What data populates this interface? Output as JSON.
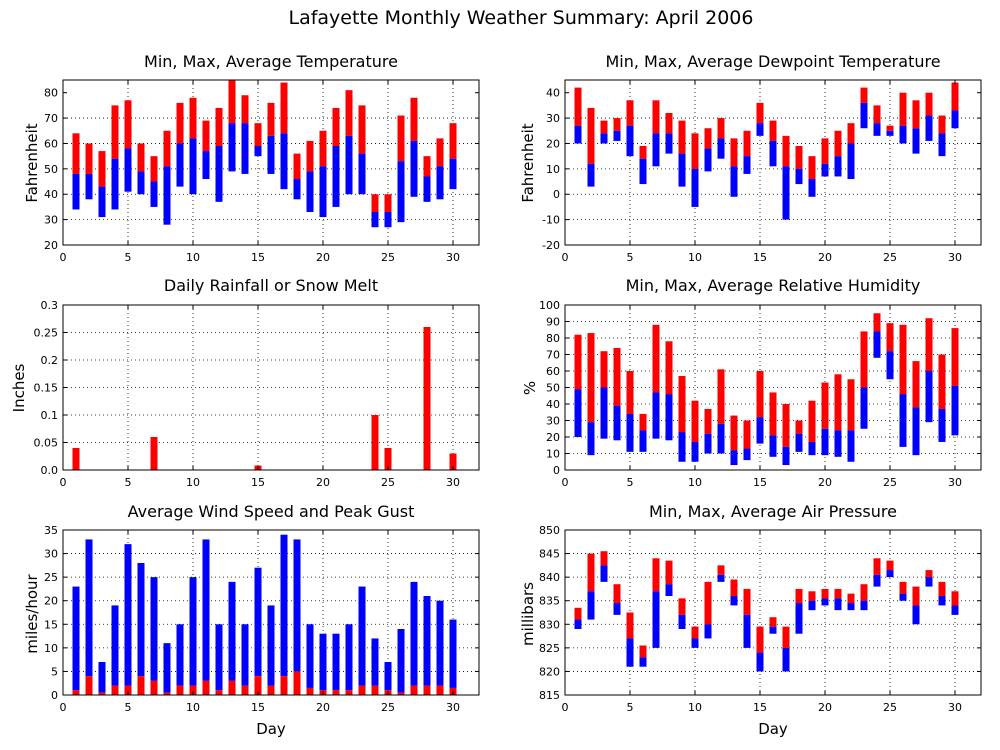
{
  "suptitle": "Lafayette Monthly Weather Summary: April 2006",
  "colors": {
    "top": "#ff0000",
    "bottom": "#0000ff",
    "frame": "#000000",
    "grid": "#000000"
  },
  "chart_data": [
    {
      "type": "bar",
      "title": "Min, Max, Average Temperature",
      "xlabel": "",
      "ylabel": "Fahrenheit",
      "xlim": [
        0,
        32
      ],
      "ylim": [
        20,
        85
      ],
      "xticks": [
        0,
        5,
        10,
        15,
        20,
        25,
        30
      ],
      "yticks": [
        20,
        30,
        40,
        50,
        60,
        70,
        80
      ],
      "grid": true,
      "x": [
        1,
        2,
        3,
        4,
        5,
        6,
        7,
        8,
        9,
        10,
        11,
        12,
        13,
        14,
        15,
        16,
        17,
        18,
        19,
        20,
        21,
        22,
        23,
        24,
        25,
        26,
        27,
        28,
        29,
        30
      ],
      "series": [
        {
          "name": "min",
          "values": [
            34,
            38,
            31,
            34,
            41,
            40,
            35,
            28,
            43,
            40,
            46,
            37,
            49,
            48,
            55,
            48,
            42,
            38,
            33,
            31,
            35,
            40,
            40,
            27,
            27,
            29,
            39,
            37,
            38,
            42
          ]
        },
        {
          "name": "avg",
          "values": [
            48,
            48,
            43,
            54,
            58,
            49,
            45,
            51,
            60,
            62,
            57,
            59,
            68,
            68,
            59,
            63,
            64,
            46,
            49,
            51,
            59,
            63,
            56,
            33,
            33,
            53,
            61,
            47,
            51,
            54
          ]
        },
        {
          "name": "max",
          "values": [
            64,
            60,
            57,
            75,
            77,
            60,
            55,
            65,
            76,
            78,
            69,
            74,
            85,
            79,
            68,
            76,
            84,
            56,
            61,
            65,
            74,
            81,
            75,
            40,
            40,
            71,
            78,
            55,
            62,
            68
          ]
        }
      ]
    },
    {
      "type": "bar",
      "title": "Min, Max, Average Dewpoint Temperature",
      "xlabel": "",
      "ylabel": "Fahrenheit",
      "xlim": [
        0,
        32
      ],
      "ylim": [
        -20,
        45
      ],
      "xticks": [
        0,
        5,
        10,
        15,
        20,
        25,
        30
      ],
      "yticks": [
        -20,
        -10,
        0,
        10,
        20,
        30,
        40
      ],
      "grid": true,
      "x": [
        1,
        2,
        3,
        4,
        5,
        6,
        7,
        8,
        9,
        10,
        11,
        12,
        13,
        14,
        15,
        16,
        17,
        18,
        19,
        20,
        21,
        22,
        23,
        24,
        25,
        26,
        27,
        28,
        29,
        30
      ],
      "series": [
        {
          "name": "min",
          "values": [
            20,
            3,
            20,
            21,
            15,
            4,
            11,
            16,
            3,
            -5,
            9,
            14,
            -1,
            8,
            23,
            11,
            -10,
            4,
            -1,
            7,
            7,
            6,
            26,
            23,
            23,
            20,
            16,
            21,
            15,
            26
          ]
        },
        {
          "name": "avg",
          "values": [
            27,
            12,
            24,
            25,
            27,
            14,
            24,
            24,
            16,
            10,
            18,
            22,
            11,
            15,
            28,
            21,
            11,
            10,
            6,
            12,
            15,
            20,
            36,
            28,
            25,
            27,
            26,
            31,
            24,
            33
          ]
        },
        {
          "name": "max",
          "values": [
            42,
            34,
            29,
            30,
            37,
            19,
            37,
            32,
            29,
            24,
            26,
            30,
            22,
            25,
            36,
            29,
            23,
            19,
            15,
            22,
            25,
            28,
            42,
            35,
            27,
            40,
            37,
            40,
            31,
            44
          ]
        }
      ]
    },
    {
      "type": "bar",
      "title": "Daily Rainfall or Snow Melt",
      "xlabel": "",
      "ylabel": "Inches",
      "xlim": [
        0,
        32
      ],
      "ylim": [
        0,
        0.3
      ],
      "xticks": [
        0,
        5,
        10,
        15,
        20,
        25,
        30
      ],
      "yticks": [
        0,
        0.05,
        0.1,
        0.15,
        0.2,
        0.25,
        0.3
      ],
      "ytick_labels": [
        "0.0",
        "0.05",
        "0.1",
        "0.15",
        "0.2",
        "0.25",
        "0.3"
      ],
      "grid": true,
      "x": [
        1,
        2,
        3,
        4,
        5,
        6,
        7,
        8,
        9,
        10,
        11,
        12,
        13,
        14,
        15,
        16,
        17,
        18,
        19,
        20,
        21,
        22,
        23,
        24,
        25,
        26,
        27,
        28,
        29,
        30
      ],
      "series": [
        {
          "name": "rain",
          "values": [
            0.04,
            0,
            0,
            0,
            0,
            0,
            0.06,
            0,
            0,
            0,
            0,
            0,
            0,
            0,
            0.008,
            0,
            0,
            0,
            0,
            0,
            0,
            0,
            0,
            0.1,
            0.04,
            0,
            0,
            0.26,
            0,
            0.03
          ]
        }
      ]
    },
    {
      "type": "bar",
      "title": "Min, Max, Average Relative Humidity",
      "xlabel": "",
      "ylabel": "%",
      "xlim": [
        0,
        32
      ],
      "ylim": [
        0,
        100
      ],
      "xticks": [
        0,
        5,
        10,
        15,
        20,
        25,
        30
      ],
      "yticks": [
        0,
        10,
        20,
        30,
        40,
        50,
        60,
        70,
        80,
        90,
        100
      ],
      "grid": true,
      "x": [
        1,
        2,
        3,
        4,
        5,
        6,
        7,
        8,
        9,
        10,
        11,
        12,
        13,
        14,
        15,
        16,
        17,
        18,
        19,
        20,
        21,
        22,
        23,
        24,
        25,
        26,
        27,
        28,
        29,
        30
      ],
      "series": [
        {
          "name": "min",
          "values": [
            20,
            9,
            19,
            18,
            11,
            11,
            19,
            18,
            5,
            5,
            10,
            10,
            3,
            6,
            16,
            8,
            3,
            11,
            9,
            9,
            8,
            5,
            25,
            68,
            55,
            14,
            9,
            29,
            17,
            21
          ]
        },
        {
          "name": "avg",
          "values": [
            49,
            29,
            50,
            39,
            34,
            24,
            47,
            46,
            23,
            17,
            22,
            28,
            12,
            13,
            32,
            21,
            14,
            22,
            17,
            25,
            24,
            24,
            50,
            84,
            72,
            46,
            38,
            60,
            37,
            51
          ]
        },
        {
          "name": "max",
          "values": [
            82,
            83,
            72,
            74,
            60,
            34,
            88,
            78,
            57,
            42,
            37,
            61,
            33,
            30,
            60,
            47,
            40,
            30,
            42,
            53,
            58,
            55,
            84,
            95,
            89,
            88,
            66,
            92,
            70,
            86
          ]
        }
      ]
    },
    {
      "type": "bar",
      "title": "Average Wind Speed and Peak Gust",
      "xlabel": "Day",
      "ylabel": "miles/hour",
      "xlim": [
        0,
        32
      ],
      "ylim": [
        0,
        35
      ],
      "xticks": [
        0,
        5,
        10,
        15,
        20,
        25,
        30
      ],
      "yticks": [
        0,
        5,
        10,
        15,
        20,
        25,
        30,
        35
      ],
      "grid": true,
      "x": [
        1,
        2,
        3,
        4,
        5,
        6,
        7,
        8,
        9,
        10,
        11,
        12,
        13,
        14,
        15,
        16,
        17,
        18,
        19,
        20,
        21,
        22,
        23,
        24,
        25,
        26,
        27,
        28,
        29,
        30
      ],
      "series": [
        {
          "name": "avg",
          "values": [
            1,
            4,
            0.5,
            2,
            2,
            4,
            3,
            0.5,
            2,
            2,
            3,
            1,
            3,
            2,
            4,
            2,
            4,
            5,
            1.5,
            1,
            1,
            1,
            2,
            2,
            1,
            0.5,
            2,
            2,
            2,
            1.5
          ]
        },
        {
          "name": "gust",
          "values": [
            23,
            33,
            7,
            19,
            32,
            28,
            25,
            11,
            15,
            25,
            33,
            15,
            24,
            15,
            27,
            19,
            34,
            33,
            15,
            13,
            13,
            15,
            23,
            12,
            7,
            14,
            24,
            21,
            20,
            16
          ]
        }
      ]
    },
    {
      "type": "bar",
      "title": "Min, Max, Average Air Pressure",
      "xlabel": "Day",
      "ylabel": "millibars",
      "xlim": [
        0,
        32
      ],
      "ylim": [
        815,
        850
      ],
      "xticks": [
        0,
        5,
        10,
        15,
        20,
        25,
        30
      ],
      "yticks": [
        815,
        820,
        825,
        830,
        835,
        840,
        845,
        850
      ],
      "grid": true,
      "x": [
        1,
        2,
        3,
        4,
        5,
        6,
        7,
        8,
        9,
        10,
        11,
        12,
        13,
        14,
        15,
        16,
        17,
        18,
        19,
        20,
        21,
        22,
        23,
        24,
        25,
        26,
        27,
        28,
        29,
        30
      ],
      "series": [
        {
          "name": "min",
          "values": [
            829,
            831,
            839,
            832,
            821,
            821,
            825,
            836,
            829,
            825,
            827,
            839,
            834,
            825,
            820,
            828,
            820,
            828,
            833,
            834,
            833,
            833,
            833,
            838,
            840,
            835,
            830,
            838,
            834,
            832
          ]
        },
        {
          "name": "avg",
          "values": [
            831,
            837,
            842.5,
            834.5,
            827,
            823,
            837,
            838.5,
            832,
            827,
            830,
            840.5,
            836,
            832,
            824,
            829.5,
            825,
            834.5,
            835,
            835.5,
            835.5,
            834.5,
            835,
            840.5,
            841.5,
            836.5,
            834,
            840,
            836,
            834
          ]
        },
        {
          "name": "max",
          "values": [
            833.5,
            845,
            845.5,
            838.5,
            832.5,
            825.5,
            844,
            843.5,
            835.5,
            829.5,
            839,
            842.5,
            839.5,
            837.5,
            829.5,
            831.5,
            829.5,
            837.5,
            837,
            837.5,
            837.5,
            836.5,
            838.5,
            844,
            843.5,
            839,
            838,
            841.5,
            839,
            837
          ]
        }
      ]
    }
  ]
}
